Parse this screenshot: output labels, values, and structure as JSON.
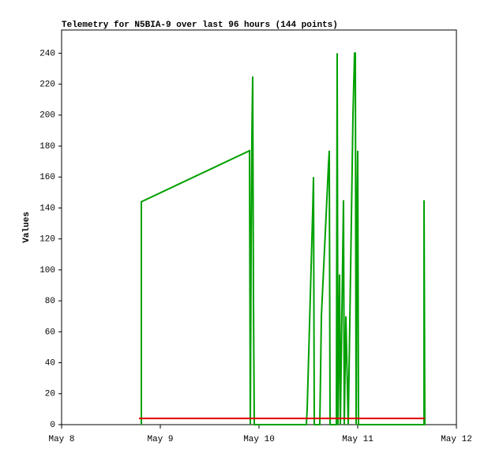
{
  "chart_data": {
    "type": "line",
    "title": "Telemetry for N5BIA-9 over last 96 hours (144 points)",
    "y_label": "Values",
    "xlim": [
      8,
      12
    ],
    "xticks": [
      {
        "value": 8,
        "label": "May 8"
      },
      {
        "value": 9,
        "label": "May 9"
      },
      {
        "value": 10,
        "label": "May 10"
      },
      {
        "value": 11,
        "label": "May 11"
      },
      {
        "value": 12,
        "label": "May 12"
      }
    ],
    "ylim": [
      0,
      255
    ],
    "yticks": [
      0,
      20,
      40,
      60,
      80,
      100,
      120,
      140,
      160,
      180,
      200,
      220,
      240
    ],
    "grid": false,
    "series": [
      {
        "color": "#00a000",
        "x": [
          8.808,
          8.808,
          9.904,
          9.912,
          9.92,
          9.928,
          9.936,
          9.944,
          9.952,
          10.48,
          10.488,
          10.544,
          10.552,
          10.56,
          10.616,
          10.632,
          10.704,
          10.712,
          10.72,
          10.784,
          10.792,
          10.8,
          10.816,
          10.824,
          10.856,
          10.864,
          10.88,
          10.904,
          10.952,
          10.968,
          10.976,
          10.984,
          10.992,
          11.0,
          11.008,
          11.672,
          11.672,
          11.68
        ],
        "values": [
          0,
          144,
          177,
          0,
          112,
          187,
          225,
          80,
          0,
          0,
          10,
          138,
          160,
          0,
          0,
          70,
          168,
          177,
          0,
          0,
          240,
          0,
          97,
          0,
          145,
          0,
          70,
          0,
          200,
          240,
          240,
          0,
          133,
          177,
          0,
          0,
          145,
          0
        ]
      },
      {
        "color": "#e00000",
        "x": [
          8.784,
          11.68
        ],
        "values": [
          4,
          4
        ]
      }
    ]
  }
}
